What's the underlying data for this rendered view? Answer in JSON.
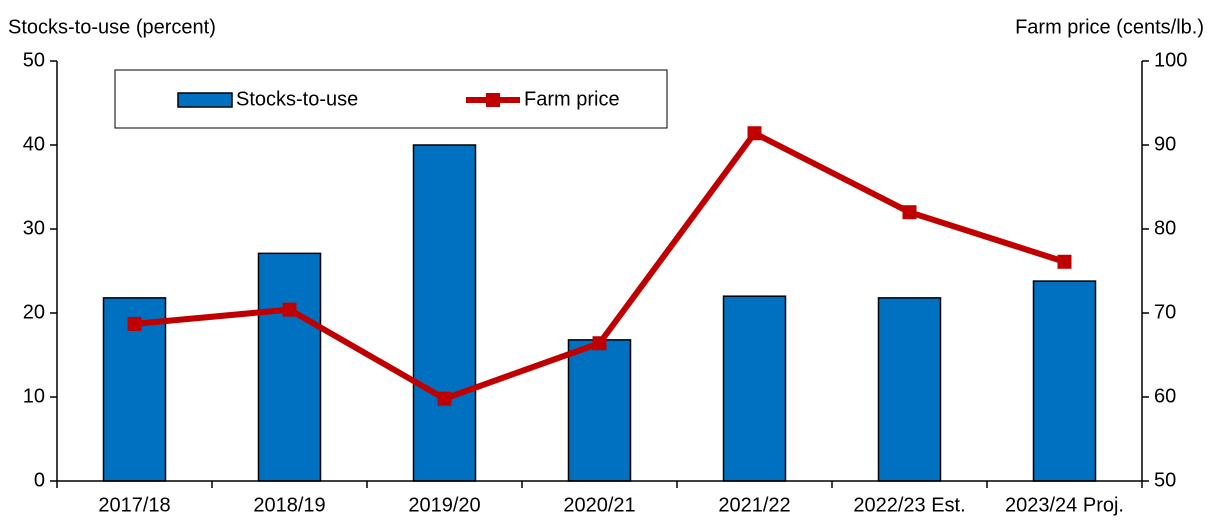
{
  "chart_data": {
    "type": "bar",
    "y_label": "Stocks-to-use (percent)",
    "y2_label": "Farm price (cents/lb.)",
    "categories": [
      "2017/18",
      "2018/19",
      "2019/20",
      "2020/21",
      "2021/22",
      "2022/23 Est.",
      "2023/24 Proj."
    ],
    "series": [
      {
        "name": "Stocks-to-use",
        "type": "bar",
        "color": "#0070c0",
        "values": [
          21.8,
          27.1,
          40.0,
          16.8,
          22.0,
          21.8,
          23.8
        ]
      },
      {
        "name": "Farm price",
        "type": "line",
        "axis": "y2",
        "color": "#c00000",
        "values": [
          68.7,
          70.4,
          59.8,
          66.4,
          91.4,
          82.0,
          76.1
        ]
      }
    ],
    "ylim": [
      0,
      50
    ],
    "yticks": [
      0,
      10,
      20,
      30,
      40,
      50
    ],
    "y2lim": [
      50,
      100
    ],
    "y2ticks": [
      50,
      60,
      70,
      80,
      90,
      100
    ],
    "grid": false,
    "legend": "top-left"
  }
}
